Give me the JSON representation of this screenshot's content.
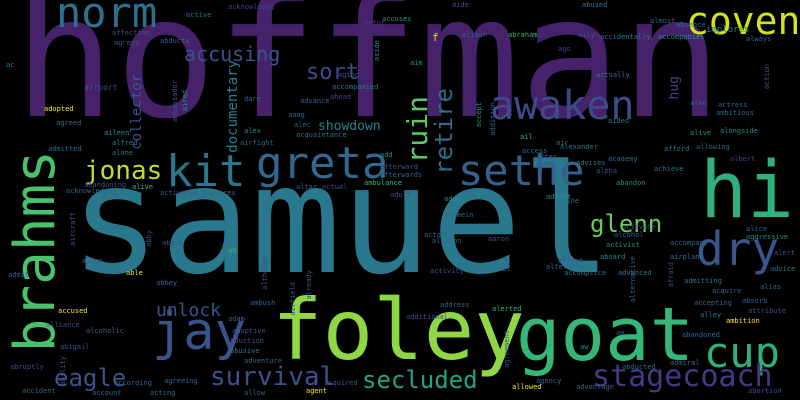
{
  "palette": {
    "background": "#000000",
    "dark_purple": "#46226b",
    "purple": "#482173",
    "slate": "#3b528b",
    "steel_blue": "#31688e",
    "teal": "#21918c",
    "sea_green": "#2db27d",
    "green": "#5ec962",
    "lime": "#a0da39",
    "yellow": "#e2e418"
  },
  "words": [
    {
      "text": "hoffman",
      "color": "#482173"
    },
    {
      "text": "samuel",
      "color": "#2a788e"
    },
    {
      "text": "foley",
      "color": "#8fd744"
    },
    {
      "text": "goat",
      "color": "#35b779"
    },
    {
      "text": "brahms",
      "color": "#4ac16d"
    },
    {
      "text": "hi",
      "color": "#2db27d"
    },
    {
      "text": "greta",
      "color": "#31688e"
    },
    {
      "text": "sethe",
      "color": "#33638d"
    },
    {
      "text": "jay",
      "color": "#3b528b"
    },
    {
      "text": "kit",
      "color": "#2a788e"
    },
    {
      "text": "norm",
      "color": "#2c728e"
    },
    {
      "text": "awaken",
      "color": "#3e4a89"
    },
    {
      "text": "coven",
      "color": "#d2e21b"
    },
    {
      "text": "dry",
      "color": "#3a548c"
    },
    {
      "text": "cup",
      "color": "#2db27d"
    },
    {
      "text": "stagecoach",
      "color": "#443983"
    },
    {
      "text": "eagle",
      "color": "#3b528b"
    },
    {
      "text": "jonas",
      "color": "#bddf26"
    },
    {
      "text": "survival",
      "color": "#3b528b"
    },
    {
      "text": "secluded",
      "color": "#20a486"
    },
    {
      "text": "ruin",
      "color": "#5ec962"
    },
    {
      "text": "retire",
      "color": "#2e6e8e"
    },
    {
      "text": "accusing",
      "color": "#3b528b"
    },
    {
      "text": "sort",
      "color": "#3e4a89"
    },
    {
      "text": "glenn",
      "color": "#6ccd5a"
    },
    {
      "text": "unlock",
      "color": "#3b528b"
    },
    {
      "text": "documentary",
      "color": "#26828e"
    },
    {
      "text": "collector",
      "color": "#39558c"
    },
    {
      "text": "showdown",
      "color": "#25848e"
    },
    {
      "text": "hug",
      "color": "#404688"
    },
    {
      "text": "f",
      "color": "#dde318"
    },
    {
      "text": "active",
      "color": "#2a788e"
    },
    {
      "text": "acknowledge",
      "color": "#414487"
    },
    {
      "text": "abused",
      "color": "#2a788e"
    },
    {
      "text": "almost",
      "color": "#31688e"
    },
    {
      "text": "absence",
      "color": "#31688e"
    },
    {
      "text": "always",
      "color": "#31688e"
    },
    {
      "text": "implores",
      "color": "#2a788e"
    },
    {
      "text": "accompanies",
      "color": "#21918c"
    },
    {
      "text": "accidentally",
      "color": "#2a788e"
    },
    {
      "text": "ally",
      "color": "#3b528b"
    },
    {
      "text": "abraham",
      "color": "#35b779"
    },
    {
      "text": "alison",
      "color": "#31688e"
    },
    {
      "text": "aide",
      "color": "#3b528b"
    },
    {
      "text": "ago",
      "color": "#414487"
    },
    {
      "text": "accuses",
      "color": "#21918c"
    },
    {
      "text": "actor",
      "color": "#414487"
    },
    {
      "text": "affection",
      "color": "#3b528b"
    },
    {
      "text": "abducts",
      "color": "#31688e"
    },
    {
      "text": "agrees",
      "color": "#3b528b"
    },
    {
      "text": "actually",
      "color": "#2a788e"
    },
    {
      "text": "airport",
      "color": "#3b528b"
    },
    {
      "text": "adopted",
      "color": "#fde725"
    },
    {
      "text": "agreed",
      "color": "#31688e"
    },
    {
      "text": "aging",
      "color": "#3b528b"
    },
    {
      "text": "accompanied",
      "color": "#2a788e"
    },
    {
      "text": "advance",
      "color": "#31688e"
    },
    {
      "text": "ahead",
      "color": "#414487"
    },
    {
      "text": "alex",
      "color": "#21918c"
    },
    {
      "text": "airfight",
      "color": "#31688e"
    },
    {
      "text": "acquaintance",
      "color": "#2a788e"
    },
    {
      "text": "accept",
      "color": "#21918c"
    },
    {
      "text": "addition",
      "color": "#31688e"
    },
    {
      "text": "aided",
      "color": "#2a788e"
    },
    {
      "text": "actress",
      "color": "#31688e"
    },
    {
      "text": "ambitious",
      "color": "#31688e"
    },
    {
      "text": "affect",
      "color": "#3b528b"
    },
    {
      "text": "alongside",
      "color": "#21918c"
    },
    {
      "text": "alive",
      "color": "#21918c"
    },
    {
      "text": "allowing",
      "color": "#31688e"
    },
    {
      "text": "albert",
      "color": "#414487"
    },
    {
      "text": "achieve",
      "color": "#2a788e"
    },
    {
      "text": "abandon",
      "color": "#21918c"
    },
    {
      "text": "academy",
      "color": "#31688e"
    },
    {
      "text": "advises",
      "color": "#2a788e"
    },
    {
      "text": "alpha",
      "color": "#3b528b"
    },
    {
      "text": "access",
      "color": "#31688e"
    },
    {
      "text": "after",
      "color": "#3b528b"
    },
    {
      "text": "alexander",
      "color": "#2a788e"
    },
    {
      "text": "add",
      "color": "#21918c"
    },
    {
      "text": "afterward",
      "color": "#3b528b"
    },
    {
      "text": "afterwards",
      "color": "#31688e"
    },
    {
      "text": "ambulance",
      "color": "#35b779"
    },
    {
      "text": "actual",
      "color": "#3b528b"
    },
    {
      "text": "altar",
      "color": "#31688e"
    },
    {
      "text": "adult",
      "color": "#3b528b"
    },
    {
      "text": "adopt",
      "color": "#21918c"
    },
    {
      "text": "accepts",
      "color": "#2a788e"
    },
    {
      "text": "addict",
      "color": "#21918c"
    },
    {
      "text": "acquires",
      "color": "#31688e"
    },
    {
      "text": "activates",
      "color": "#3b528b"
    },
    {
      "text": "alive",
      "color": "#35b779"
    },
    {
      "text": "abandoning",
      "color": "#3b528b"
    },
    {
      "text": "acknowledges",
      "color": "#31688e"
    },
    {
      "text": "alone",
      "color": "#2a788e"
    },
    {
      "text": "admitted",
      "color": "#31688e"
    },
    {
      "text": "alfred",
      "color": "#2a788e"
    },
    {
      "text": "aileen",
      "color": "#21918c"
    },
    {
      "text": "alien",
      "color": "#31688e"
    },
    {
      "text": "abuse",
      "color": "#3b528b"
    },
    {
      "text": "ah",
      "color": "#35b779"
    },
    {
      "text": "alamein",
      "color": "#31688e"
    },
    {
      "text": "aaron",
      "color": "#3b528b"
    },
    {
      "text": "actor",
      "color": "#31688e"
    },
    {
      "text": "alcohol",
      "color": "#31688e"
    },
    {
      "text": "alice",
      "color": "#31688e"
    },
    {
      "text": "activate",
      "color": "#3b528b"
    },
    {
      "text": "airplane",
      "color": "#2a788e"
    },
    {
      "text": "aggressive",
      "color": "#21918c"
    },
    {
      "text": "advice",
      "color": "#2a788e"
    },
    {
      "text": "alert",
      "color": "#3b528b"
    },
    {
      "text": "alias",
      "color": "#31688e"
    },
    {
      "text": "acquire",
      "color": "#31688e"
    },
    {
      "text": "admitting",
      "color": "#2a788e"
    },
    {
      "text": "accompany",
      "color": "#31688e"
    },
    {
      "text": "activist",
      "color": "#21918c"
    },
    {
      "text": "advanced",
      "color": "#2a788e"
    },
    {
      "text": "aboard",
      "color": "#21918c"
    },
    {
      "text": "alternate",
      "color": "#31688e"
    },
    {
      "text": "act",
      "color": "#31688e"
    },
    {
      "text": "activity",
      "color": "#3b528b"
    },
    {
      "text": "accomplice",
      "color": "#2a788e"
    },
    {
      "text": "align",
      "color": "#31688e"
    },
    {
      "text": "able",
      "color": "#fde725"
    },
    {
      "text": "abbey",
      "color": "#31688e"
    },
    {
      "text": "admit",
      "color": "#31688e"
    },
    {
      "text": "accused",
      "color": "#fde725"
    },
    {
      "text": "alliance",
      "color": "#3b528b"
    },
    {
      "text": "alcoholic",
      "color": "#31688e"
    },
    {
      "text": "abigail",
      "color": "#3b528b"
    },
    {
      "text": "abruptly",
      "color": "#3b528b"
    },
    {
      "text": "accident",
      "color": "#31688e"
    },
    {
      "text": "according",
      "color": "#31688e"
    },
    {
      "text": "account",
      "color": "#31688e"
    },
    {
      "text": "acting",
      "color": "#31688e"
    },
    {
      "text": "agreeing",
      "color": "#31688e"
    },
    {
      "text": "adam",
      "color": "#31688e"
    },
    {
      "text": "adoptive",
      "color": "#3b528b"
    },
    {
      "text": "abduction",
      "color": "#3b528b"
    },
    {
      "text": "abusive",
      "color": "#2a788e"
    },
    {
      "text": "adventure",
      "color": "#31688e"
    },
    {
      "text": "allow",
      "color": "#31688e"
    },
    {
      "text": "agent",
      "color": "#fde725"
    },
    {
      "text": "acquired",
      "color": "#3b528b"
    },
    {
      "text": "allowed",
      "color": "#fde725"
    },
    {
      "text": "agency",
      "color": "#31688e"
    },
    {
      "text": "advantage",
      "color": "#31688e"
    },
    {
      "text": "abducted",
      "color": "#31688e"
    },
    {
      "text": "admiral",
      "color": "#31688e"
    },
    {
      "text": "abortion",
      "color": "#3b528b"
    },
    {
      "text": "abandoned",
      "color": "#31688e"
    },
    {
      "text": "accepting",
      "color": "#31688e"
    },
    {
      "text": "ambition",
      "color": "#fde725"
    },
    {
      "text": "alley",
      "color": "#2a788e"
    },
    {
      "text": "alerted",
      "color": "#35b779"
    },
    {
      "text": "additional",
      "color": "#3b528b"
    },
    {
      "text": "address",
      "color": "#31688e"
    },
    {
      "text": "ambush",
      "color": "#31688e"
    },
    {
      "text": "attribute",
      "color": "#3b528b"
    },
    {
      "text": "absorb",
      "color": "#31688e"
    },
    {
      "text": "agreement",
      "color": "#3b528b"
    },
    {
      "text": "ability",
      "color": "#3b528b"
    },
    {
      "text": "alternative",
      "color": "#31688e"
    },
    {
      "text": "afraid",
      "color": "#3b528b"
    },
    {
      "text": "aircraft",
      "color": "#3b528b"
    },
    {
      "text": "abby",
      "color": "#3b528b"
    },
    {
      "text": "although",
      "color": "#3b528b"
    },
    {
      "text": "airfield",
      "color": "#3b528b"
    },
    {
      "text": "already",
      "color": "#3b528b"
    },
    {
      "text": "ambassador",
      "color": "#3b528b"
    },
    {
      "text": "aired",
      "color": "#21918c"
    },
    {
      "text": "action",
      "color": "#3b528b"
    },
    {
      "text": "aside",
      "color": "#21918c"
    },
    {
      "text": "aim",
      "color": "#21918c"
    },
    {
      "text": "aang",
      "color": "#31688e"
    },
    {
      "text": "alec",
      "color": "#31688e"
    },
    {
      "text": "dare",
      "color": "#31688e"
    },
    {
      "text": "air",
      "color": "#2a788e"
    },
    {
      "text": "ail",
      "color": "#35b779"
    },
    {
      "text": "am",
      "color": "#3b528b"
    },
    {
      "text": "aline",
      "color": "#31688e"
    },
    {
      "text": "also",
      "color": "#31688e"
    },
    {
      "text": "afford",
      "color": "#2a788e"
    },
    {
      "text": "allison",
      "color": "#31688e"
    },
    {
      "text": "aw",
      "color": "#21918c"
    },
    {
      "text": "ac",
      "color": "#2a788e"
    }
  ]
}
